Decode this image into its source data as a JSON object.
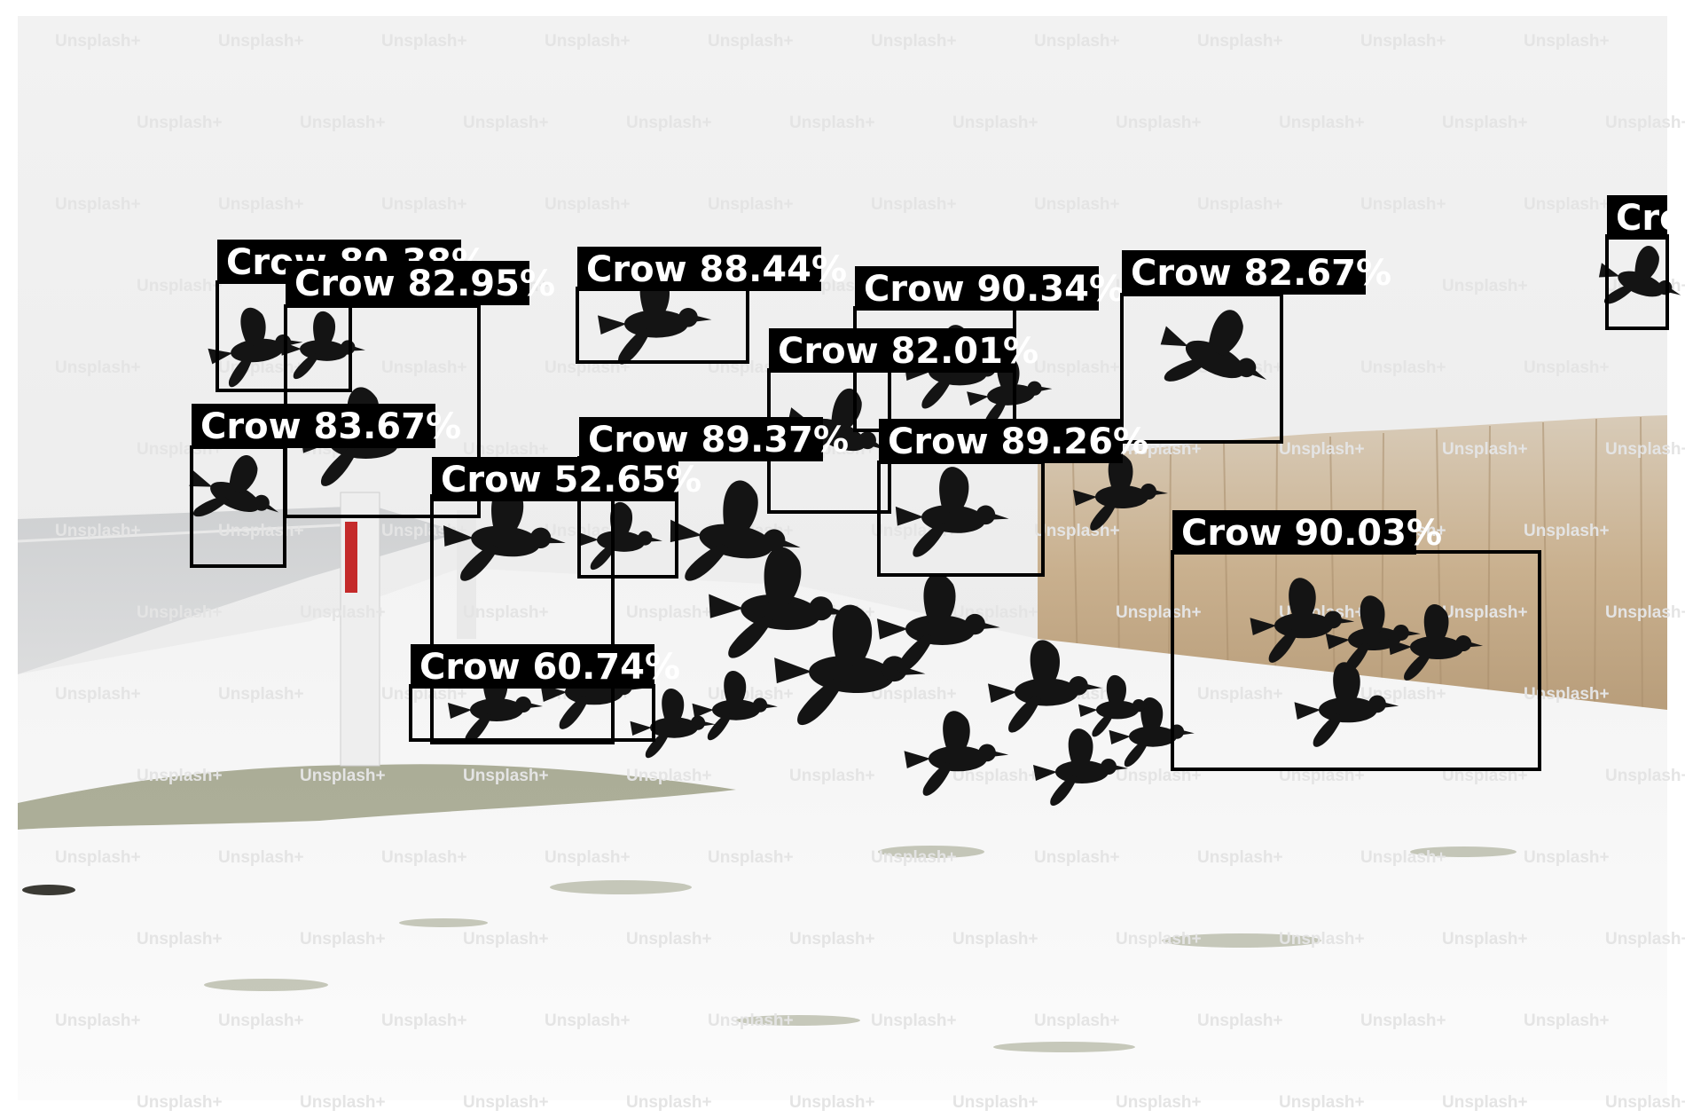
{
  "watermark": "Unsplash+",
  "detections": [
    {
      "label": "Crow 80.38%",
      "color": "#000000"
    },
    {
      "label": "Crow 82.95%",
      "color": "#000000"
    },
    {
      "label": "Crow 88.44%",
      "color": "#000000"
    },
    {
      "label": "Crow 90.34%",
      "color": "#000000"
    },
    {
      "label": "Crow 82.67%",
      "color": "#000000"
    },
    {
      "label": "Cro",
      "color": "#000000"
    },
    {
      "label": "Crow 82.01%",
      "color": "#000000"
    },
    {
      "label": "Crow 83.67%",
      "color": "#000000"
    },
    {
      "label": "Crow 89.37%",
      "color": "#000000"
    },
    {
      "label": "Crow 89.26%",
      "color": "#000000"
    },
    {
      "label": "Crow 52.65%",
      "color": "#000000"
    },
    {
      "label": "Crow 90.03%",
      "color": "#000000"
    },
    {
      "label": "Crow 60.74%",
      "color": "#000000"
    }
  ]
}
